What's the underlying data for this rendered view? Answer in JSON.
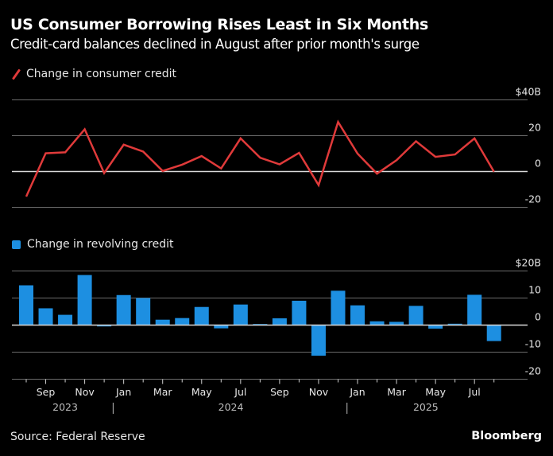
{
  "header": {
    "title": "US Consumer Borrowing Rises Least in Six Months",
    "subtitle": "Credit-card balances declined in August after prior month's surge"
  },
  "footer": {
    "source": "Source: Federal Reserve",
    "brand": "Bloomberg"
  },
  "colors": {
    "background": "#000000",
    "line": "#e03a3a",
    "bar": "#1d8fe1",
    "gridline": "#6b6b6b",
    "zeroline": "#d9d9d9"
  },
  "chart_data": [
    {
      "type": "line",
      "title": "US Consumer Borrowing Rises Least in Six Months",
      "legend": [
        "Change in consumer credit"
      ],
      "legend_position": "top-left",
      "xlabel": "",
      "ylabel": "",
      "ylim": [
        -20,
        40
      ],
      "yticks": [
        -20,
        0,
        20,
        40
      ],
      "ytick_labels": [
        "-20",
        "0",
        "20",
        "$40B"
      ],
      "grid": true,
      "x": [
        "Aug 2023",
        "Sep 2023",
        "Oct 2023",
        "Nov 2023",
        "Dec 2023",
        "Jan 2024",
        "Feb 2024",
        "Mar 2024",
        "Apr 2024",
        "May 2024",
        "Jun 2024",
        "Jul 2024",
        "Aug 2024",
        "Sep 2024",
        "Oct 2024",
        "Nov 2024",
        "Dec 2024",
        "Jan 2025",
        "Feb 2025",
        "Mar 2025",
        "Apr 2025",
        "May 2025",
        "Jun 2025",
        "Jul 2025",
        "Aug 2025"
      ],
      "series": [
        {
          "name": "Change in consumer credit",
          "values": [
            -14.0,
            10.2,
            10.7,
            23.6,
            -0.9,
            15.0,
            11.1,
            0.3,
            3.8,
            8.6,
            1.7,
            18.5,
            7.7,
            4.0,
            10.4,
            -7.6,
            27.7,
            10.0,
            -1.2,
            6.3,
            16.9,
            8.2,
            9.5,
            18.5,
            -0.1
          ]
        }
      ]
    },
    {
      "type": "bar",
      "legend": [
        "Change in revolving credit"
      ],
      "legend_position": "top-left",
      "xlabel": "",
      "ylabel": "",
      "ylim": [
        -20,
        20
      ],
      "yticks": [
        -20,
        -10,
        0,
        10,
        20
      ],
      "ytick_labels": [
        "-20",
        "-10",
        "0",
        "10",
        "$20B"
      ],
      "grid": true,
      "x": [
        "Aug 2023",
        "Sep 2023",
        "Oct 2023",
        "Nov 2023",
        "Dec 2023",
        "Jan 2024",
        "Feb 2024",
        "Mar 2024",
        "Apr 2024",
        "May 2024",
        "Jun 2024",
        "Jul 2024",
        "Aug 2024",
        "Sep 2024",
        "Oct 2024",
        "Nov 2024",
        "Dec 2024",
        "Jan 2025",
        "Feb 2025",
        "Mar 2025",
        "Apr 2025",
        "May 2025",
        "Jun 2025",
        "Jul 2025",
        "Aug 2025"
      ],
      "series": [
        {
          "name": "Change in revolving credit",
          "values": [
            14.7,
            6.2,
            3.8,
            18.5,
            -0.5,
            11.1,
            10.0,
            2.0,
            2.6,
            6.7,
            -1.2,
            7.6,
            0.4,
            2.5,
            9.0,
            -11.3,
            12.7,
            7.3,
            1.4,
            1.2,
            7.1,
            -1.3,
            0.5,
            11.2,
            -5.9
          ]
        }
      ]
    }
  ],
  "xaxis": {
    "month_labels": [
      {
        "label": "Sep",
        "index": 1
      },
      {
        "label": "Nov",
        "index": 3
      },
      {
        "label": "Jan",
        "index": 5
      },
      {
        "label": "Mar",
        "index": 7
      },
      {
        "label": "May",
        "index": 9
      },
      {
        "label": "Jul",
        "index": 11
      },
      {
        "label": "Sep",
        "index": 13
      },
      {
        "label": "Nov",
        "index": 15
      },
      {
        "label": "Jan",
        "index": 17
      },
      {
        "label": "Mar",
        "index": 19
      },
      {
        "label": "May",
        "index": 21
      },
      {
        "label": "Jul",
        "index": 23
      }
    ],
    "year_labels": [
      {
        "label": "2023",
        "center_index": 2
      },
      {
        "label": "2024",
        "center_index": 10.5
      },
      {
        "label": "2025",
        "center_index": 20.5
      }
    ],
    "year_dividers": [
      4.5,
      16.5
    ]
  }
}
